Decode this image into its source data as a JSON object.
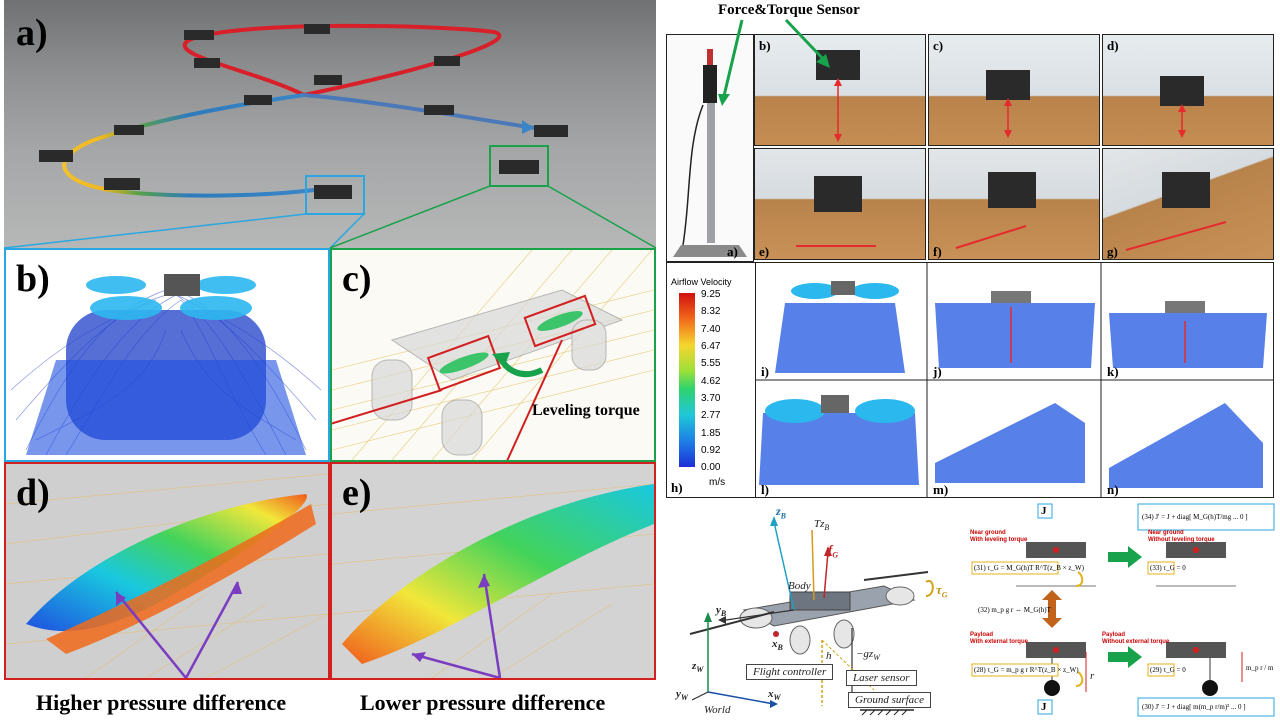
{
  "left_figure": {
    "panel_a": "a)",
    "panel_b": "b)",
    "panel_c": "c)",
    "panel_d": "d)",
    "panel_e": "e)",
    "leveling_torque": "Leveling torque",
    "caption_d": "Higher pressure difference",
    "caption_e": "Lower pressure difference"
  },
  "right_top": {
    "sensor_label": "Force&Torque Sensor",
    "panels": [
      "a)",
      "b)",
      "c)",
      "d)",
      "e)",
      "f)",
      "g)"
    ]
  },
  "right_mid": {
    "colorbar_title": "Airflow Velocity",
    "colorbar_unit": "m/s",
    "colorbar_ticks": [
      "9.25",
      "8.32",
      "7.40",
      "6.47",
      "5.55",
      "4.62",
      "3.70",
      "2.77",
      "1.85",
      "0.92",
      "0.00"
    ],
    "panels": [
      "h)",
      "i)",
      "j)",
      "k)",
      "l)",
      "m)",
      "n)"
    ]
  },
  "drone_diagram": {
    "zB": "z",
    "zB_sub": "B",
    "TzB": "Tz",
    "TzB_sub": "B",
    "fG": "f",
    "fG_sub": "G",
    "tauG": "τ",
    "tauG_sub": "G",
    "body": "Body",
    "yB": "y",
    "yB_sub": "B",
    "xB": "x",
    "xB_sub": "B",
    "zW": "z",
    "zW_sub": "W",
    "gzW": "−gz",
    "gzW_sub": "W",
    "h": "h",
    "yW": "y",
    "yW_sub": "W",
    "xW": "x",
    "xW_sub": "W",
    "world": "World",
    "flight_controller": "Flight controller",
    "laser_sensor": "Laser sensor",
    "ground_surface": "Ground surface"
  },
  "flow_diagram": {
    "J_top": "J",
    "J_bottom": "J",
    "near_ground_with": [
      "Near ground",
      "With leveling torque"
    ],
    "near_ground_without": [
      "Near ground",
      "Without leveling torque"
    ],
    "payload_with": [
      "Payload",
      "With external torque"
    ],
    "payload_without": [
      "Payload",
      "Without external torque"
    ],
    "eq31": "(31) τ_G = M_G(h)T R^T(z_B × z_W)",
    "eq33": "(33) τ_G = 0",
    "eq32": "(32) m_p g r ⇔ M_G(h)T",
    "eq28": "(28) τ_G = m_p g r R^T(z_B × z_W)",
    "eq29": "(29) τ_G = 0",
    "eq34": "(34) J' = J + diag[ M_G(h)T/mg ... 0 ]",
    "eq30": "(30) J' = J + diag[ m(m_p r/m)² ... 0 ]",
    "r_label": "r",
    "mr_label": "m_p r / m"
  },
  "colors": {
    "red_box": "#d21f1f",
    "blue_box": "#2aa7e0",
    "green_box": "#1aa24a",
    "green_arrow": "#19a24c",
    "orange_arrow": "#c1631b"
  }
}
